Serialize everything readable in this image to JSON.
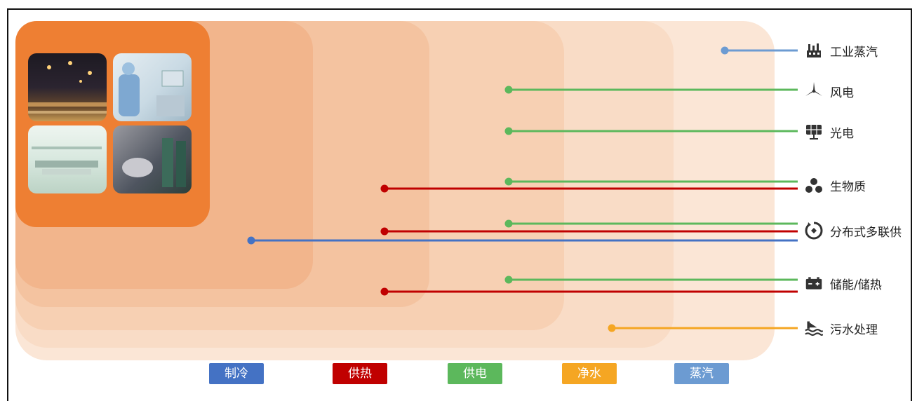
{
  "categories": [
    {
      "key": "cooling",
      "label": "制冷",
      "color": "#4472c4"
    },
    {
      "key": "heating",
      "label": "供热",
      "color": "#c00000"
    },
    {
      "key": "power",
      "label": "供电",
      "color": "#5cb85c"
    },
    {
      "key": "water",
      "label": "净水",
      "color": "#f5a623"
    },
    {
      "key": "steam",
      "label": "蒸汽",
      "color": "#6c9bd2"
    }
  ],
  "sources": [
    {
      "name": "工业蒸汽",
      "icon": "factory-icon",
      "links": [
        "steam"
      ]
    },
    {
      "name": "风电",
      "icon": "wind-turbine-icon",
      "links": [
        "power"
      ]
    },
    {
      "name": "光电",
      "icon": "solar-panel-icon",
      "links": [
        "power"
      ]
    },
    {
      "name": "生物质",
      "icon": "biomass-icon",
      "links": [
        "power",
        "heating"
      ]
    },
    {
      "name": "分布式多联供",
      "icon": "distributed-energy-icon",
      "links": [
        "power",
        "heating",
        "cooling"
      ]
    },
    {
      "name": "储能/储热",
      "icon": "battery-icon",
      "links": [
        "power",
        "heating"
      ]
    },
    {
      "name": "污水处理",
      "icon": "water-treatment-icon",
      "links": [
        "water"
      ]
    }
  ],
  "photos": [
    {
      "name": "street-night-photo"
    },
    {
      "name": "lab-photo"
    },
    {
      "name": "factory-floor-photo"
    },
    {
      "name": "ev-charging-photo"
    }
  ]
}
